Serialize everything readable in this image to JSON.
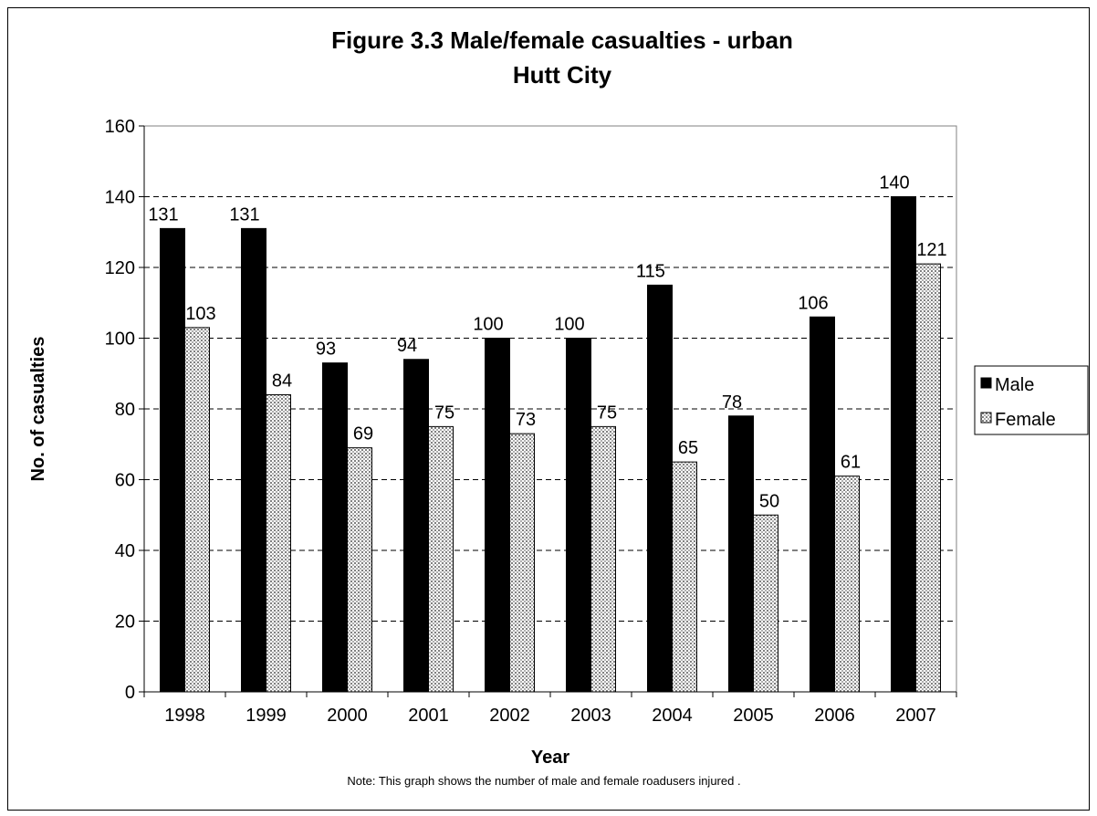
{
  "chart_data": {
    "type": "bar",
    "title": "Figure 3.3 Male/female casualties - urban",
    "subtitle": "Hutt City",
    "xlabel": "Year",
    "ylabel": "No. of casualties",
    "note": "Note: This graph shows the number of male and female roadusers injured .",
    "categories": [
      "1998",
      "1999",
      "2000",
      "2001",
      "2002",
      "2003",
      "2004",
      "2005",
      "2006",
      "2007"
    ],
    "series": [
      {
        "name": "Male",
        "color": "#000000",
        "values": [
          131,
          131,
          93,
          94,
          100,
          100,
          115,
          78,
          106,
          140
        ]
      },
      {
        "name": "Female",
        "color": "#d9d9d9",
        "pattern": "dotted",
        "values": [
          103,
          84,
          69,
          75,
          73,
          75,
          65,
          50,
          61,
          121
        ]
      }
    ],
    "ylim": [
      0,
      160
    ],
    "yticks": [
      0,
      20,
      40,
      60,
      80,
      100,
      120,
      140,
      160
    ],
    "grid": "horizontal-dashed",
    "legend_position": "right",
    "data_labels": true
  }
}
